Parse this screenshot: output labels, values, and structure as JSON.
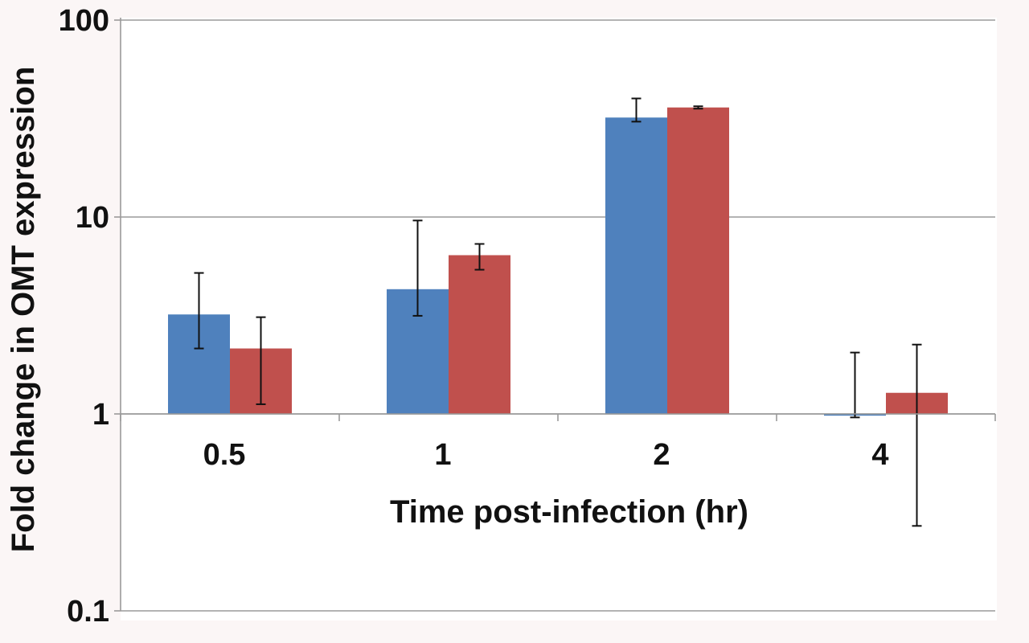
{
  "chart_data": {
    "type": "bar",
    "title": "",
    "xlabel": "Time post-infection (hr)",
    "ylabel": "Fold change in OMT expression",
    "yscale": "log",
    "ylim": [
      0.1,
      100
    ],
    "yticks": [
      "0.1",
      "1",
      "10",
      "100"
    ],
    "ytick_values": [
      0.1,
      1,
      10,
      100
    ],
    "categories": [
      "0.5",
      "1",
      "2",
      "4"
    ],
    "grid": "horizontal",
    "legend": "none",
    "series": [
      {
        "color": "#4f81bd",
        "values": [
          3.2,
          4.3,
          32,
          0.98
        ],
        "err_low": [
          2.15,
          3.15,
          30.5,
          0.96
        ],
        "err_high": [
          5.2,
          9.6,
          40,
          2.05
        ]
      },
      {
        "color": "#c0504d",
        "values": [
          2.15,
          6.4,
          36,
          1.28
        ],
        "err_low": [
          1.12,
          5.4,
          35.5,
          0.27
        ],
        "err_high": [
          3.1,
          7.3,
          36.5,
          2.25
        ]
      }
    ]
  }
}
